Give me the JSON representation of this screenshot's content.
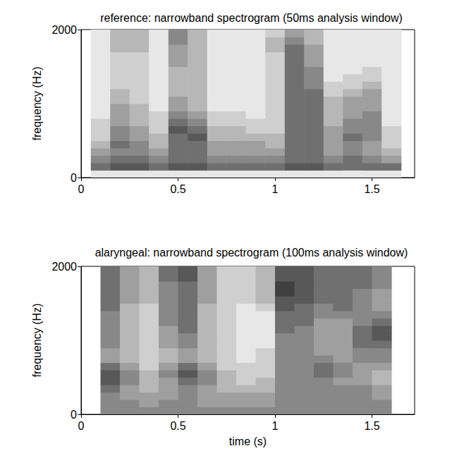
{
  "chart_data": [
    {
      "type": "heatmap",
      "title": "reference: narrowband spectrogram (50ms analysis window)",
      "y_label": "frequency (Hz)",
      "xlim": [
        0,
        1.72
      ],
      "xticks": [
        0,
        0.5,
        1,
        1.5
      ],
      "ylim": [
        0,
        2000
      ],
      "yticks": [
        0,
        2000
      ],
      "grid": false,
      "zlim": [
        0,
        9
      ],
      "x": [
        0.1,
        0.2,
        0.3,
        0.4,
        0.5,
        0.6,
        0.7,
        0.8,
        0.9,
        1.0,
        1.1,
        1.2,
        1.3,
        1.4,
        1.5,
        1.6
      ],
      "y": [
        50,
        150,
        250,
        350,
        450,
        550,
        650,
        750,
        850,
        950,
        1050,
        1150,
        1250,
        1350,
        1450,
        1550,
        1650,
        1750,
        1850,
        1950
      ],
      "values": [
        [
          1,
          1,
          1,
          1,
          1,
          1,
          1,
          1,
          1,
          1,
          1,
          1,
          1,
          1,
          1,
          1
        ],
        [
          6,
          7,
          7,
          6,
          7,
          7,
          6,
          6,
          6,
          6,
          7,
          7,
          6,
          6,
          6,
          6
        ],
        [
          5,
          6,
          6,
          5,
          6,
          6,
          5,
          5,
          5,
          5,
          6,
          6,
          5,
          6,
          5,
          4
        ],
        [
          4,
          5,
          5,
          4,
          6,
          6,
          4,
          4,
          4,
          4,
          6,
          6,
          4,
          5,
          4,
          3
        ],
        [
          3,
          6,
          5,
          3,
          6,
          6,
          4,
          4,
          4,
          3,
          6,
          6,
          4,
          5,
          4,
          2
        ],
        [
          2,
          5,
          4,
          3,
          6,
          7,
          3,
          3,
          3,
          3,
          6,
          6,
          4,
          6,
          5,
          2
        ],
        [
          2,
          5,
          4,
          2,
          7,
          6,
          3,
          3,
          2,
          2,
          6,
          6,
          4,
          5,
          5,
          2
        ],
        [
          2,
          4,
          3,
          2,
          6,
          5,
          2,
          2,
          2,
          2,
          6,
          6,
          3,
          5,
          5,
          1
        ],
        [
          1,
          4,
          3,
          2,
          5,
          4,
          2,
          2,
          1,
          2,
          6,
          6,
          3,
          4,
          5,
          1
        ],
        [
          1,
          4,
          3,
          1,
          4,
          3,
          1,
          1,
          1,
          2,
          6,
          6,
          3,
          4,
          4,
          1
        ],
        [
          1,
          3,
          2,
          1,
          4,
          3,
          1,
          1,
          1,
          2,
          6,
          6,
          3,
          4,
          4,
          1
        ],
        [
          1,
          3,
          2,
          1,
          3,
          3,
          1,
          1,
          1,
          2,
          6,
          6,
          2,
          3,
          4,
          1
        ],
        [
          1,
          2,
          2,
          1,
          3,
          3,
          1,
          1,
          1,
          2,
          6,
          5,
          2,
          2,
          3,
          1
        ],
        [
          1,
          2,
          2,
          1,
          3,
          3,
          1,
          1,
          1,
          2,
          6,
          5,
          1,
          2,
          2,
          1
        ],
        [
          1,
          2,
          2,
          1,
          3,
          3,
          1,
          1,
          1,
          2,
          6,
          5,
          1,
          1,
          2,
          1
        ],
        [
          1,
          2,
          2,
          1,
          4,
          3,
          1,
          1,
          1,
          2,
          6,
          4,
          1,
          1,
          1,
          1
        ],
        [
          1,
          2,
          2,
          1,
          4,
          3,
          1,
          1,
          1,
          2,
          6,
          4,
          1,
          1,
          1,
          1
        ],
        [
          1,
          3,
          3,
          1,
          4,
          3,
          1,
          1,
          1,
          3,
          6,
          4,
          1,
          1,
          1,
          1
        ],
        [
          1,
          3,
          3,
          1,
          5,
          3,
          1,
          1,
          1,
          3,
          5,
          3,
          1,
          1,
          1,
          1
        ],
        [
          1,
          3,
          3,
          1,
          5,
          3,
          1,
          1,
          1,
          2,
          4,
          3,
          1,
          1,
          1,
          1
        ]
      ]
    },
    {
      "type": "heatmap",
      "title": "alaryngeal: narrowband spectrogram (100ms analysis window)",
      "x_label": "time (s)",
      "y_label": "frequency (Hz)",
      "xlim": [
        0,
        1.72
      ],
      "xticks": [
        0,
        0.5,
        1,
        1.5
      ],
      "ylim": [
        0,
        2000
      ],
      "yticks": [
        0,
        2000
      ],
      "grid": false,
      "zlim": [
        0,
        9
      ],
      "x": [
        0.15,
        0.25,
        0.35,
        0.45,
        0.55,
        0.65,
        0.75,
        0.85,
        0.95,
        1.05,
        1.15,
        1.25,
        1.35,
        1.45,
        1.55
      ],
      "y": [
        50,
        150,
        250,
        350,
        450,
        550,
        650,
        750,
        850,
        950,
        1050,
        1150,
        1250,
        1350,
        1450,
        1550,
        1650,
        1750,
        1850,
        1950
      ],
      "values": [
        [
          5,
          5,
          5,
          5,
          5,
          5,
          5,
          5,
          5,
          5,
          5,
          5,
          5,
          5,
          5
        ],
        [
          5,
          5,
          4,
          5,
          5,
          4,
          4,
          4,
          4,
          5,
          5,
          5,
          5,
          5,
          5
        ],
        [
          5,
          4,
          4,
          4,
          5,
          4,
          4,
          4,
          4,
          5,
          5,
          5,
          5,
          5,
          4
        ],
        [
          6,
          4,
          3,
          4,
          5,
          4,
          3,
          3,
          3,
          5,
          5,
          5,
          5,
          5,
          4
        ],
        [
          7,
          5,
          3,
          4,
          6,
          5,
          3,
          2,
          3,
          5,
          5,
          5,
          4,
          4,
          3
        ],
        [
          7,
          5,
          3,
          5,
          7,
          5,
          3,
          2,
          2,
          5,
          5,
          6,
          5,
          4,
          3
        ],
        [
          6,
          4,
          2,
          4,
          6,
          4,
          2,
          2,
          2,
          5,
          5,
          6,
          5,
          4,
          4
        ],
        [
          4,
          3,
          2,
          3,
          4,
          3,
          2,
          1,
          2,
          5,
          5,
          5,
          4,
          5,
          5
        ],
        [
          4,
          3,
          2,
          3,
          4,
          3,
          2,
          1,
          2,
          5,
          5,
          4,
          4,
          5,
          5
        ],
        [
          5,
          3,
          2,
          4,
          5,
          3,
          2,
          1,
          1,
          5,
          5,
          4,
          4,
          6,
          6
        ],
        [
          5,
          3,
          2,
          4,
          5,
          3,
          2,
          1,
          1,
          5,
          5,
          4,
          4,
          6,
          7
        ],
        [
          5,
          3,
          2,
          4,
          6,
          3,
          2,
          1,
          1,
          6,
          5,
          4,
          4,
          6,
          7
        ],
        [
          5,
          3,
          2,
          5,
          6,
          3,
          2,
          1,
          1,
          6,
          6,
          4,
          4,
          5,
          6
        ],
        [
          5,
          3,
          2,
          5,
          6,
          3,
          2,
          1,
          1,
          6,
          6,
          5,
          5,
          5,
          5
        ],
        [
          6,
          3,
          2,
          5,
          6,
          3,
          2,
          1,
          2,
          7,
          6,
          5,
          6,
          5,
          4
        ],
        [
          6,
          4,
          3,
          5,
          6,
          4,
          2,
          2,
          3,
          7,
          7,
          6,
          6,
          5,
          4
        ],
        [
          6,
          4,
          3,
          5,
          6,
          4,
          2,
          2,
          3,
          8,
          7,
          6,
          6,
          5,
          4
        ],
        [
          6,
          4,
          3,
          5,
          6,
          4,
          2,
          2,
          3,
          8,
          7,
          6,
          6,
          6,
          5
        ],
        [
          6,
          4,
          3,
          6,
          7,
          4,
          2,
          2,
          3,
          7,
          7,
          6,
          6,
          6,
          5
        ],
        [
          6,
          4,
          3,
          6,
          7,
          4,
          2,
          2,
          3,
          7,
          7,
          6,
          6,
          6,
          5
        ]
      ]
    }
  ]
}
